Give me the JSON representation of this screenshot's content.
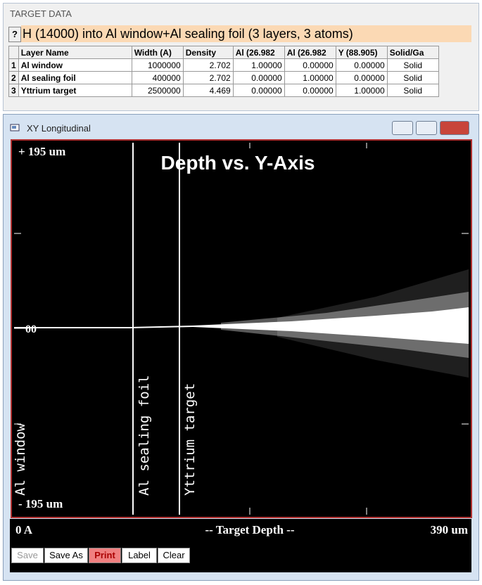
{
  "panel": {
    "title": "TARGET DATA",
    "help": "?",
    "description": "H (14000) into Al window+Al sealing foil (3 layers, 3 atoms)"
  },
  "table": {
    "columns": [
      "Layer Name",
      "Width (A)",
      "Density",
      "Al (26.982",
      "Al (26.982",
      "Y (88.905)",
      "Solid/Ga"
    ],
    "rows": [
      {
        "index": "1",
        "cells": [
          "Al window",
          "1000000",
          "2.702",
          "1.00000",
          "0.00000",
          "0.00000",
          "Solid"
        ]
      },
      {
        "index": "2",
        "cells": [
          "Al sealing foil",
          "400000",
          "2.702",
          "0.00000",
          "1.00000",
          "0.00000",
          "Solid"
        ]
      },
      {
        "index": "3",
        "cells": [
          "Yttrium target",
          "2500000",
          "4.469",
          "0.00000",
          "0.00000",
          "1.00000",
          "Solid"
        ]
      }
    ]
  },
  "window": {
    "title": "XY Longitudinal"
  },
  "plot": {
    "title": "Depth vs. Y-Axis",
    "y_top": "+ 195 um",
    "y_center": "00",
    "y_bottom": "- 195 um",
    "layer_labels": [
      "Al window",
      "Al sealing foil",
      "Yttrium target"
    ],
    "x_left": "0 A",
    "x_title": "-- Target Depth --",
    "x_right": "390 um"
  },
  "buttons": [
    "Save",
    "Save As",
    "Print",
    "Label",
    "Clear"
  ]
}
